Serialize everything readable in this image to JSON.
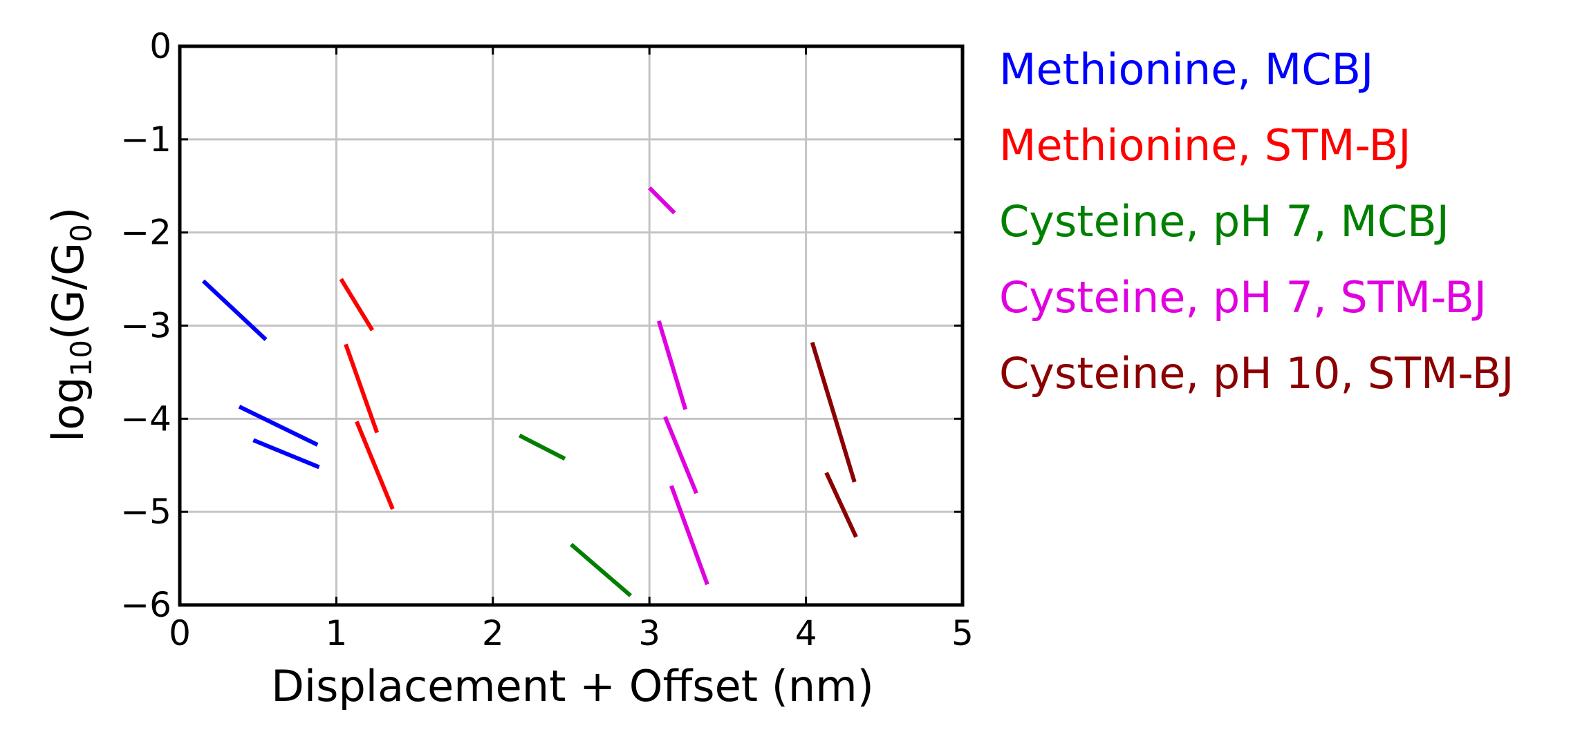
{
  "chart_data": {
    "type": "line",
    "title": "",
    "xlabel": "Displacement + Offset (nm)",
    "ylabel_main": "log",
    "ylabel_sub": "10",
    "ylabel_tail": "(G/G",
    "ylabel_sub2": "0",
    "ylabel_end": ")",
    "xlim": [
      0,
      5
    ],
    "ylim": [
      -6,
      0
    ],
    "xticks": [
      0,
      1,
      2,
      3,
      4,
      5
    ],
    "xtick_labels": [
      "0",
      "1",
      "2",
      "3",
      "4",
      "5"
    ],
    "yticks": [
      0,
      -1,
      -2,
      -3,
      -4,
      -5,
      -6
    ],
    "ytick_labels": [
      "0",
      "−1",
      "−2",
      "−3",
      "−4",
      "−5",
      "−6"
    ],
    "grid": true,
    "legend_position": "outside-right",
    "series": [
      {
        "name": "Methionine, MCBJ",
        "color": "#0000ff",
        "segments": [
          [
            [
              0.15,
              -2.52
            ],
            [
              0.55,
              -3.15
            ]
          ],
          [
            [
              0.38,
              -3.87
            ],
            [
              0.88,
              -4.28
            ]
          ],
          [
            [
              0.47,
              -4.23
            ],
            [
              0.89,
              -4.52
            ]
          ]
        ]
      },
      {
        "name": "Methionine, STM-BJ",
        "color": "#ff0000",
        "segments": [
          [
            [
              1.03,
              -2.5
            ],
            [
              1.23,
              -3.05
            ]
          ],
          [
            [
              1.06,
              -3.2
            ],
            [
              1.26,
              -4.15
            ]
          ],
          [
            [
              1.13,
              -4.03
            ],
            [
              1.36,
              -4.97
            ]
          ]
        ]
      },
      {
        "name": "Cysteine, pH 7, MCBJ",
        "color": "#008000",
        "segments": [
          [
            [
              2.17,
              -4.18
            ],
            [
              2.46,
              -4.43
            ]
          ],
          [
            [
              2.5,
              -5.35
            ],
            [
              2.88,
              -5.9
            ]
          ]
        ]
      },
      {
        "name": "Cysteine, pH 7, STM-BJ",
        "color": "#e000e0",
        "segments": [
          [
            [
              3.0,
              -1.52
            ],
            [
              3.16,
              -1.79
            ]
          ],
          [
            [
              3.06,
              -2.95
            ],
            [
              3.23,
              -3.9
            ]
          ],
          [
            [
              3.1,
              -3.98
            ],
            [
              3.3,
              -4.8
            ]
          ],
          [
            [
              3.14,
              -4.72
            ],
            [
              3.37,
              -5.78
            ]
          ]
        ]
      },
      {
        "name": "Cysteine, pH 10, STM-BJ",
        "color": "#8b0000",
        "segments": [
          [
            [
              4.04,
              -3.18
            ],
            [
              4.31,
              -4.68
            ]
          ],
          [
            [
              4.13,
              -4.58
            ],
            [
              4.32,
              -5.27
            ]
          ]
        ]
      }
    ]
  }
}
